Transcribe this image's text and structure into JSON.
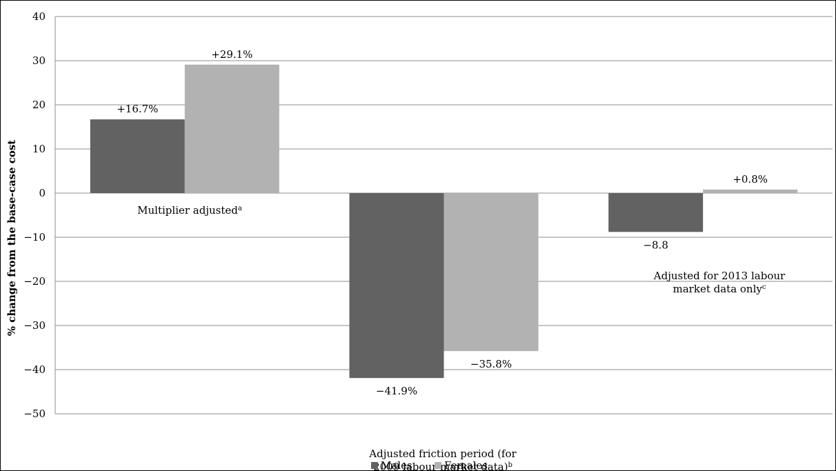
{
  "chart_data": {
    "type": "bar",
    "ylabel": "% change from the base-case cost",
    "ylim": [
      -50,
      40
    ],
    "yticks": [
      "40",
      "30",
      "20",
      "10",
      "0",
      "−10",
      "−20",
      "−30",
      "−40",
      "−50"
    ],
    "ytick_values": [
      40,
      30,
      20,
      10,
      0,
      -10,
      -20,
      -30,
      -40,
      -50
    ],
    "grid": true,
    "legend_position": "bottom",
    "categories": [
      {
        "lines": [
          "Multiplier adjusted"
        ],
        "sup": "a"
      },
      {
        "lines": [
          "Adjusted friction period (for",
          "2009 labour market data)"
        ],
        "sup": "b"
      },
      {
        "lines": [
          "Adjusted for 2013 labour",
          "market data only"
        ],
        "sup": "c"
      }
    ],
    "series": [
      {
        "name": "Males",
        "color": "#626262",
        "values": [
          16.7,
          -41.9,
          -8.8
        ],
        "labels": [
          "+16.7%",
          "−41.9%",
          "−8.8"
        ]
      },
      {
        "name": "Females",
        "color": "#b2b2b2",
        "values": [
          29.1,
          -35.8,
          0.8
        ],
        "labels": [
          "+29.1%",
          "−35.8%",
          "+0.8%"
        ]
      }
    ]
  }
}
